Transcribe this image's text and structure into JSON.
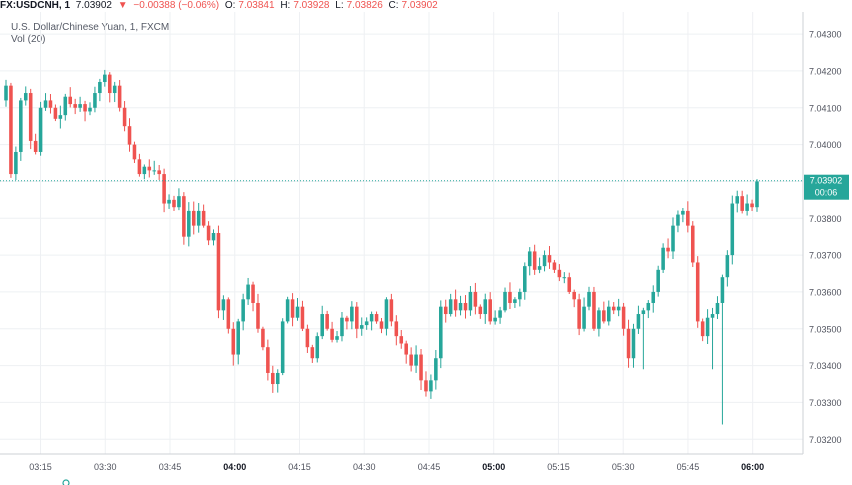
{
  "header": {
    "symbol": "FX:USDCNH, 1",
    "last": "7.03902",
    "change_arrow": "▼",
    "change": "−0.00388 (−0.06%)",
    "open_label": "O:",
    "open": "7.03841",
    "high_label": "H:",
    "high": "7.03928",
    "low_label": "L:",
    "low": "7.03826",
    "close_label": "C:",
    "close": "7.03902"
  },
  "legend": {
    "title": "U.S. Dollar/Chinese Yuan, 1, FXCM",
    "volume": "Vol (20)"
  },
  "price_tag": {
    "value": "7.03902",
    "countdown": "00:06"
  },
  "colors": {
    "up": "#26a69a",
    "down": "#ef5350",
    "grid": "#eef0f3",
    "axis_text": "#50535e",
    "last_line": "#26a69a"
  },
  "chart_data": {
    "type": "candlestick",
    "title": "U.S. Dollar/Chinese Yuan, 1, FXCM",
    "interval_minutes": 1,
    "ylim": [
      7.0316,
      7.0436
    ],
    "y_ticks": [
      "7.04300",
      "7.04200",
      "7.04100",
      "7.04000",
      "7.03900",
      "7.03800",
      "7.03700",
      "7.03600",
      "7.03500",
      "7.03400",
      "7.03300",
      "7.03200"
    ],
    "x_ticks": [
      "03:15",
      "03:30",
      "03:45",
      "04:00",
      "04:15",
      "04:30",
      "04:45",
      "05:00",
      "05:15",
      "05:30",
      "05:45",
      "06:00"
    ],
    "x_tick_bold": [
      "04:00",
      "05:00",
      "06:00"
    ],
    "last_price": 7.03902,
    "grid": true,
    "start_time": "03:07",
    "end_time": "06:01",
    "closes": [
      7.0416,
      7.0392,
      7.0398,
      7.0412,
      7.0414,
      7.0401,
      7.0398,
      7.041,
      7.0412,
      7.041,
      7.0407,
      7.0408,
      7.0413,
      7.0411,
      7.041,
      7.0411,
      7.0409,
      7.041,
      7.0414,
      7.0417,
      7.0419,
      7.0414,
      7.0416,
      7.041,
      7.0405,
      7.04,
      7.0396,
      7.0392,
      7.0394,
      7.0393,
      7.0393,
      7.0392,
      7.0384,
      7.0385,
      7.0383,
      7.0386,
      7.0375,
      7.0382,
      7.0378,
      7.0382,
      7.0378,
      7.0374,
      7.0376,
      7.0355,
      7.0358,
      7.035,
      7.0343,
      7.0352,
      7.0358,
      7.0362,
      7.0357,
      7.035,
      7.0345,
      7.0338,
      7.0335,
      7.0338,
      7.0352,
      7.0358,
      7.0353,
      7.0356,
      7.035,
      7.0345,
      7.0342,
      7.0348,
      7.0354,
      7.035,
      7.0347,
      7.0348,
      7.0353,
      7.0352,
      7.0356,
      7.035,
      7.0351,
      7.0352,
      7.0354,
      7.0352,
      7.035,
      7.0358,
      7.0352,
      7.0348,
      7.0346,
      7.0343,
      7.034,
      7.0343,
      7.0336,
      7.0333,
      7.0336,
      7.0342,
      7.0356,
      7.0354,
      7.0358,
      7.0355,
      7.0357,
      7.0355,
      7.036,
      7.0356,
      7.0354,
      7.0358,
      7.0352,
      7.0353,
      7.0355,
      7.036,
      7.0357,
      7.0358,
      7.036,
      7.0367,
      7.0371,
      7.0366,
      7.0367,
      7.037,
      7.0368,
      7.0366,
      7.0364,
      7.0364,
      7.036,
      7.0358,
      7.035,
      7.0356,
      7.036,
      7.035,
      7.0355,
      7.0352,
      7.0356,
      7.0355,
      7.0356,
      7.035,
      7.0342,
      7.035,
      7.0354,
      7.0355,
      7.0357,
      7.036,
      7.0366,
      7.0372,
      7.0371,
      7.0378,
      7.0381,
      7.0382,
      7.0378,
      7.0368,
      7.0352,
      7.0348,
      7.0353,
      7.0354,
      7.0357,
      7.0364,
      7.037,
      7.0384,
      7.0386,
      7.0382,
      7.0384,
      7.0383,
      7.039
    ]
  }
}
